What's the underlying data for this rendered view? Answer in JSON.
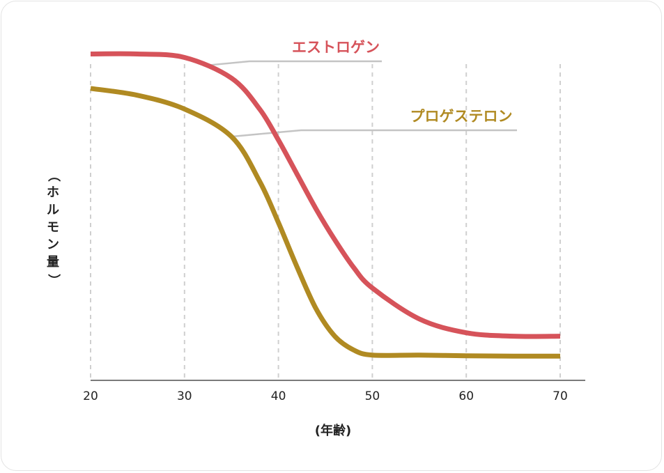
{
  "chart_data": {
    "type": "line",
    "title": "",
    "xlabel": "(年齢)",
    "ylabel": "（ホルモン量）",
    "xlim": [
      20,
      70
    ],
    "ylim": [
      0,
      100
    ],
    "x_ticks": [
      "20",
      "30",
      "40",
      "50",
      "60",
      "70"
    ],
    "grid": {
      "vertical_dashed": true,
      "horizontal": false
    },
    "series": [
      {
        "name": "エストロゲン",
        "color": "#d6535a",
        "x": [
          20,
          25,
          30,
          35,
          38,
          40,
          42,
          44,
          46,
          48,
          50,
          55,
          60,
          65,
          70
        ],
        "y": [
          92,
          92,
          91,
          85,
          76,
          67,
          57,
          47,
          38,
          30,
          24,
          15,
          11,
          10,
          10
        ]
      },
      {
        "name": "プロゲステロン",
        "color": "#b08a22",
        "x": [
          20,
          25,
          30,
          35,
          38,
          40,
          42,
          44,
          46,
          48,
          50,
          55,
          60,
          65,
          70
        ],
        "y": [
          82,
          80,
          76,
          68,
          55,
          43,
          30,
          18,
          10,
          6,
          4.5,
          4.5,
          4.3,
          4.2,
          4.2
        ]
      }
    ]
  }
}
